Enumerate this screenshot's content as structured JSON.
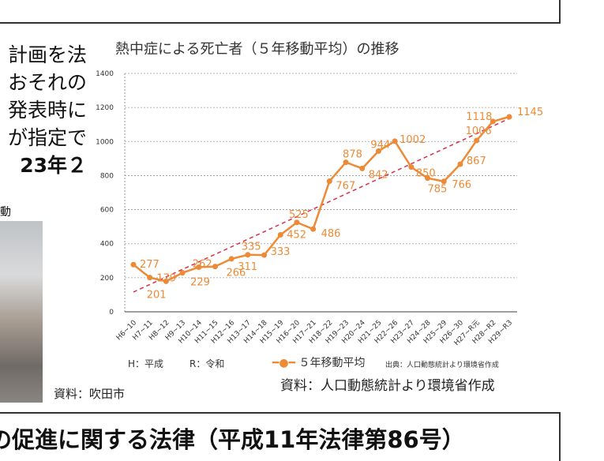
{
  "left_text": {
    "lines": [
      "計画を法",
      "おそれの",
      "発表時に",
      "が指定で"
    ],
    "bold_line": "23年２",
    "small": "動"
  },
  "photo_caption": "資料：吹田市",
  "bottom_heading": "の促進に関する法律（平成11年法律第86号）",
  "chart_data": {
    "type": "line",
    "title": "熱中症による死亡者（５年移動平均）の推移",
    "categories": [
      "H6~10",
      "H7~11",
      "H8~12",
      "H9~13",
      "H10~14",
      "H11~15",
      "H12~16",
      "H13~17",
      "H14~18",
      "H15~19",
      "H16~20",
      "H17~21",
      "H18~22",
      "H19~23",
      "H20~24",
      "H21~25",
      "H22~26",
      "H23~27",
      "H24~28",
      "H25~29",
      "H26~30",
      "H27~R元",
      "H28~R2",
      "H29~R3"
    ],
    "series": [
      {
        "name": "５年移動平均",
        "values": [
          277,
          201,
          179,
          229,
          262,
          266,
          311,
          335,
          333,
          452,
          525,
          486,
          767,
          878,
          842,
          944,
          1002,
          850,
          785,
          766,
          867,
          1006,
          1118,
          1145
        ],
        "color": "#ed8a35"
      }
    ],
    "trendline": {
      "style": "dashed",
      "color": "#d9304a",
      "start": 116,
      "end": 1135
    },
    "ylim": [
      0,
      1400
    ],
    "yticks": [
      0,
      200,
      400,
      600,
      800,
      1000,
      1200,
      1400
    ],
    "grid": true,
    "legend_position": "bottom",
    "notes": {
      "abbr_h": "H：平成",
      "abbr_r": "R：令和",
      "source_small": "出典：人口動態統計より環境省作成"
    }
  },
  "chart_source": "資料：人口動態統計より環境省作成"
}
